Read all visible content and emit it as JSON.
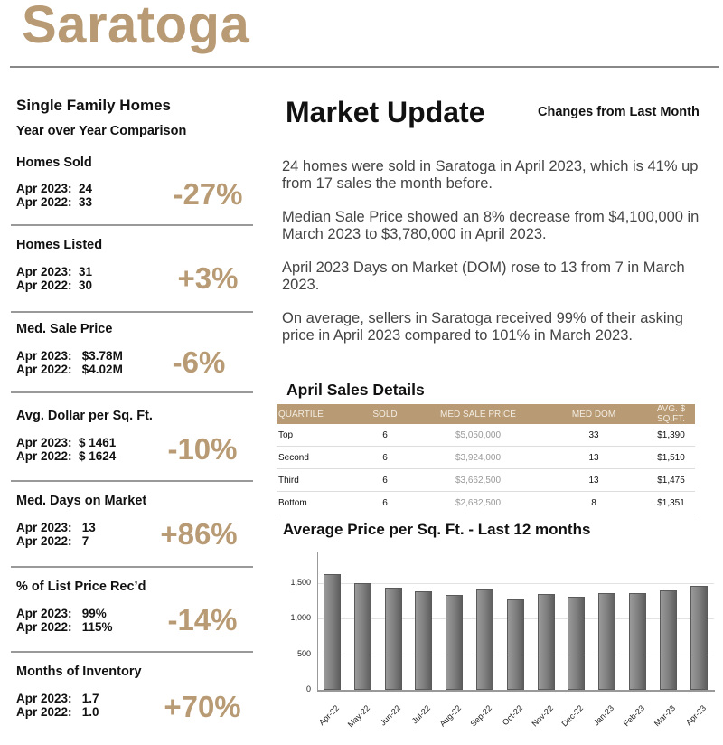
{
  "header": {
    "city": "Saratoga"
  },
  "left": {
    "section_title": "Single Family Homes",
    "subtitle": "Year over Year Comparison",
    "metrics": [
      {
        "label": "Homes Sold",
        "apr2023": "Apr 2023:  24",
        "apr2022": "Apr 2022:  33",
        "change": "-27%"
      },
      {
        "label": "Homes Listed",
        "apr2023": "Apr 2023:  31",
        "apr2022": "Apr 2022:  30",
        "change": "+3%"
      },
      {
        "label": "Med. Sale Price",
        "apr2023": "Apr 2023:   $3.78M",
        "apr2022": "Apr 2022:   $4.02M",
        "change": "-6%"
      },
      {
        "label": "Avg. Dollar per Sq. Ft.",
        "apr2023": "Apr 2023:  $ 1461",
        "apr2022": "Apr 2022:  $ 1624",
        "change": "-10%"
      },
      {
        "label": "Med. Days on Market",
        "apr2023": "Apr 2023:   13",
        "apr2022": "Apr 2022:   7",
        "change": "+86%"
      },
      {
        "label": "% of List Price Rec’d",
        "apr2023": "Apr 2023:   99%",
        "apr2022": "Apr 2022:   115%",
        "change": "-14%"
      },
      {
        "label": "Months of Inventory",
        "apr2023": "Apr 2023:   1.7",
        "apr2022": "Apr 2022:   1.0",
        "change": "+70%"
      }
    ]
  },
  "market_update": {
    "title": "Market Update",
    "subtitle": "Changes from Last Month",
    "paragraphs": [
      "24 homes were sold in Saratoga in April 2023, which is 41% up from 17 sales the month before.",
      "Median Sale Price showed an 8% decrease from $4,100,000 in March 2023 to $3,780,000 in April 2023.",
      "April 2023 Days on Market (DOM) rose to 13 from 7 in March 2023.",
      "On average, sellers in Saratoga received 99% of their asking price in April 2023 compared to 101% in March 2023."
    ]
  },
  "sales_details": {
    "title": "April Sales Details",
    "columns": [
      "QUARTILE",
      "SOLD",
      "MED SALE PRICE",
      "MED DOM",
      "AVG. $ SQ.FT."
    ],
    "rows": [
      [
        "Top",
        "6",
        "$5,050,000",
        "33",
        "$1,390"
      ],
      [
        "Second",
        "6",
        "$3,924,000",
        "13",
        "$1,510"
      ],
      [
        "Third",
        "6",
        "$3,662,500",
        "13",
        "$1,475"
      ],
      [
        "Bottom",
        "6",
        "$2,682,500",
        "8",
        "$1,351"
      ]
    ]
  },
  "colors": {
    "accent": "#b89b74",
    "bar": "#7d7d7d",
    "rule": "#999999"
  },
  "chart_data": {
    "type": "bar",
    "title": "Average Price per Sq. Ft. - Last 12 months",
    "categories": [
      "Apr-22",
      "May-22",
      "Jun-22",
      "Jul-22",
      "Aug-22",
      "Sep-22",
      "Oct-22",
      "Nov-22",
      "Dec-22",
      "Jan-23",
      "Feb-23",
      "Mar-23",
      "Apr-23"
    ],
    "values": [
      1624,
      1505,
      1440,
      1390,
      1340,
      1415,
      1270,
      1345,
      1305,
      1355,
      1360,
      1395,
      1461
    ],
    "xlabel": "",
    "ylabel": "",
    "ylim": [
      0,
      1950
    ],
    "yticks": [
      "0",
      "500",
      "1,000",
      "1,500"
    ],
    "grid": true,
    "legend": "none"
  }
}
